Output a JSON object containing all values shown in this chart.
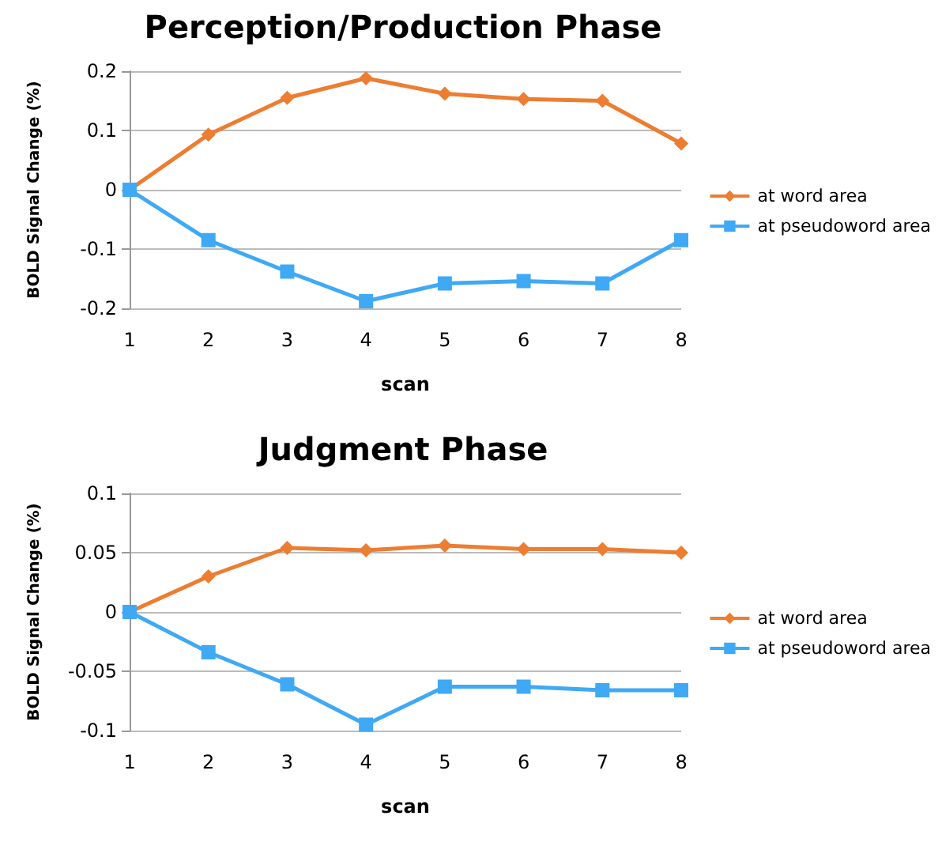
{
  "chart_data": [
    {
      "type": "line",
      "title": "Perception/Production Phase",
      "xlabel": "scan",
      "ylabel": "BOLD Signal Change (%)",
      "categories": [
        "1",
        "2",
        "3",
        "4",
        "5",
        "6",
        "7",
        "8"
      ],
      "series": [
        {
          "name": "at word area",
          "color": "#ed7d31",
          "marker": "diamond",
          "values": [
            0,
            0.093,
            0.155,
            0.188,
            0.162,
            0.153,
            0.15,
            0.078
          ]
        },
        {
          "name": "at pseudoword area",
          "color": "#3fa9f5",
          "marker": "square",
          "values": [
            0,
            -0.085,
            -0.138,
            -0.188,
            -0.158,
            -0.154,
            -0.158,
            -0.085
          ]
        }
      ],
      "ylim": [
        -0.2,
        0.2
      ],
      "yticks": [
        -0.2,
        -0.1,
        0,
        0.1,
        0.2
      ],
      "grid": "y",
      "legend": "right"
    },
    {
      "type": "line",
      "title": "Judgment Phase",
      "xlabel": "scan",
      "ylabel": "BOLD Signal Change (%)",
      "categories": [
        "1",
        "2",
        "3",
        "4",
        "5",
        "6",
        "7",
        "8"
      ],
      "series": [
        {
          "name": "at word area",
          "color": "#ed7d31",
          "marker": "diamond",
          "values": [
            0,
            0.03,
            0.054,
            0.052,
            0.056,
            0.053,
            0.053,
            0.05
          ]
        },
        {
          "name": "at pseudoword area",
          "color": "#3fa9f5",
          "marker": "square",
          "values": [
            0,
            -0.034,
            -0.061,
            -0.095,
            -0.063,
            -0.063,
            -0.066,
            -0.066
          ]
        }
      ],
      "ylim": [
        -0.1,
        0.1
      ],
      "yticks": [
        -0.1,
        -0.05,
        0,
        0.05,
        0.1
      ],
      "grid": "y",
      "legend": "right"
    }
  ]
}
